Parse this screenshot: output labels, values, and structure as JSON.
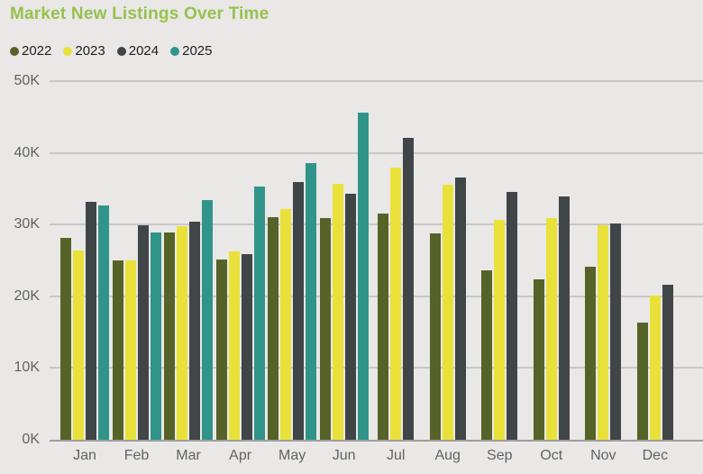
{
  "title": "Market New Listings Over Time",
  "colors": {
    "title": "#97c14e",
    "background": "#e9e8e6",
    "gridline": "#c7c7c6",
    "axis_line": "#9e9e9e",
    "axis_text": "#5f6264",
    "legend_text": "#1f1f1f",
    "series_2022": "#566328",
    "series_2023": "#e9e13a",
    "series_2024": "#404548",
    "series_2025": "#31948a"
  },
  "legend": [
    {
      "label": "2022",
      "color": "#566328"
    },
    {
      "label": "2023",
      "color": "#e9e13a"
    },
    {
      "label": "2024",
      "color": "#404548"
    },
    {
      "label": "2025",
      "color": "#31948a"
    }
  ],
  "chart_data": {
    "type": "bar",
    "title": "Market New Listings Over Time",
    "xlabel": "",
    "ylabel": "",
    "values_unit": "thousands of listings",
    "grid": true,
    "legend_position": "top-left",
    "categories": [
      "Jan",
      "Feb",
      "Mar",
      "Apr",
      "May",
      "Jun",
      "Jul",
      "Aug",
      "Sep",
      "Oct",
      "Nov",
      "Dec"
    ],
    "series": [
      {
        "name": "2022",
        "color": "#566328",
        "values_k": [
          28.2,
          25.0,
          28.9,
          25.1,
          31.0,
          30.9,
          31.5,
          28.8,
          23.6,
          22.4,
          24.1,
          16.3
        ]
      },
      {
        "name": "2023",
        "color": "#e9e13a",
        "values_k": [
          26.4,
          25.0,
          29.8,
          26.3,
          32.2,
          35.7,
          38.0,
          35.5,
          30.7,
          30.9,
          29.9,
          20.1
        ]
      },
      {
        "name": "2024",
        "color": "#404548",
        "values_k": [
          33.2,
          29.9,
          30.4,
          25.9,
          35.9,
          34.3,
          42.1,
          36.6,
          34.5,
          33.9,
          30.1,
          21.6
        ]
      },
      {
        "name": "2025",
        "color": "#31948a",
        "values_k": [
          32.7,
          28.9,
          33.4,
          35.3,
          38.6,
          45.6,
          null,
          null,
          null,
          null,
          null,
          null
        ]
      }
    ],
    "y_axis": {
      "min_k": 0,
      "max_k": 50,
      "tick_step_k": 10,
      "ticks": [
        "0K",
        "10K",
        "20K",
        "30K",
        "40K",
        "50K"
      ]
    }
  }
}
